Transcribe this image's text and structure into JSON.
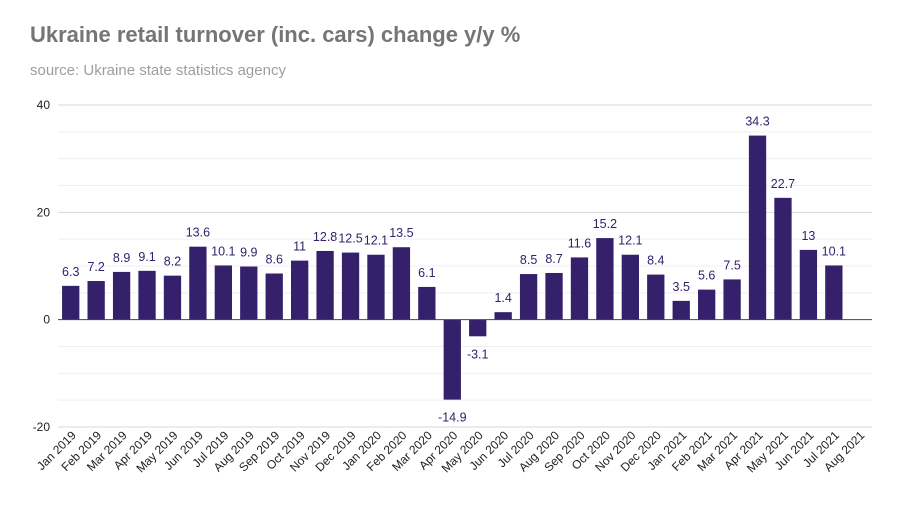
{
  "header": {
    "title": "Ukraine retail turnover (inc. cars) change y/y %",
    "subtitle": "source: Ukraine state statistics agency"
  },
  "colors": {
    "bar": "#35206c",
    "label": "#35206c",
    "grid": "#e5e5e5",
    "axis": "#444444"
  },
  "chart_data": {
    "type": "bar",
    "title": "Ukraine retail turnover (inc. cars) change y/y %",
    "subtitle": "source: Ukraine state statistics agency",
    "xlabel": "",
    "ylabel": "",
    "ylim": [
      -20,
      40
    ],
    "yticks": [
      -20,
      0,
      20,
      40
    ],
    "yticks_labels": [
      "-20",
      "0",
      "20",
      "40"
    ],
    "grid": true,
    "legend": "none",
    "categories": [
      "Jan 2019",
      "Feb 2019",
      "Mar 2019",
      "Apr 2019",
      "May 2019",
      "Jun 2019",
      "Jul 2019",
      "Aug 2019",
      "Sep 2019",
      "Oct 2019",
      "Nov 2019",
      "Dec 2019",
      "Jan 2020",
      "Feb 2020",
      "Mar 2020",
      "Apr 2020",
      "May 2020",
      "Jun 2020",
      "Jul 2020",
      "Aug 2020",
      "Sep 2020",
      "Oct 2020",
      "Nov 2020",
      "Dec 2020",
      "Jan 2021",
      "Feb 2021",
      "Mar 2021",
      "Apr 2021",
      "May 2021",
      "Jun 2021",
      "Jul 2021",
      "Aug 2021"
    ],
    "values": [
      6.3,
      7.2,
      8.9,
      9.1,
      8.2,
      13.6,
      10.1,
      9.9,
      8.6,
      11,
      12.8,
      12.5,
      12.1,
      13.5,
      6.1,
      -14.9,
      -3.1,
      1.4,
      8.5,
      8.7,
      11.6,
      15.2,
      12.1,
      8.4,
      3.5,
      5.6,
      7.5,
      34.3,
      22.7,
      13,
      10.1,
      null
    ],
    "value_labels": [
      "6.3",
      "7.2",
      "8.9",
      "9.1",
      "8.2",
      "13.6",
      "10.1",
      "9.9",
      "8.6",
      "11",
      "12.8",
      "12.5",
      "12.1",
      "13.5",
      "6.1",
      "-14.9",
      "-3.1",
      "1.4",
      "8.5",
      "8.7",
      "11.6",
      "15.2",
      "12.1",
      "8.4",
      "3.5",
      "5.6",
      "7.5",
      "34.3",
      "22.7",
      "13",
      "10.1",
      ""
    ]
  }
}
